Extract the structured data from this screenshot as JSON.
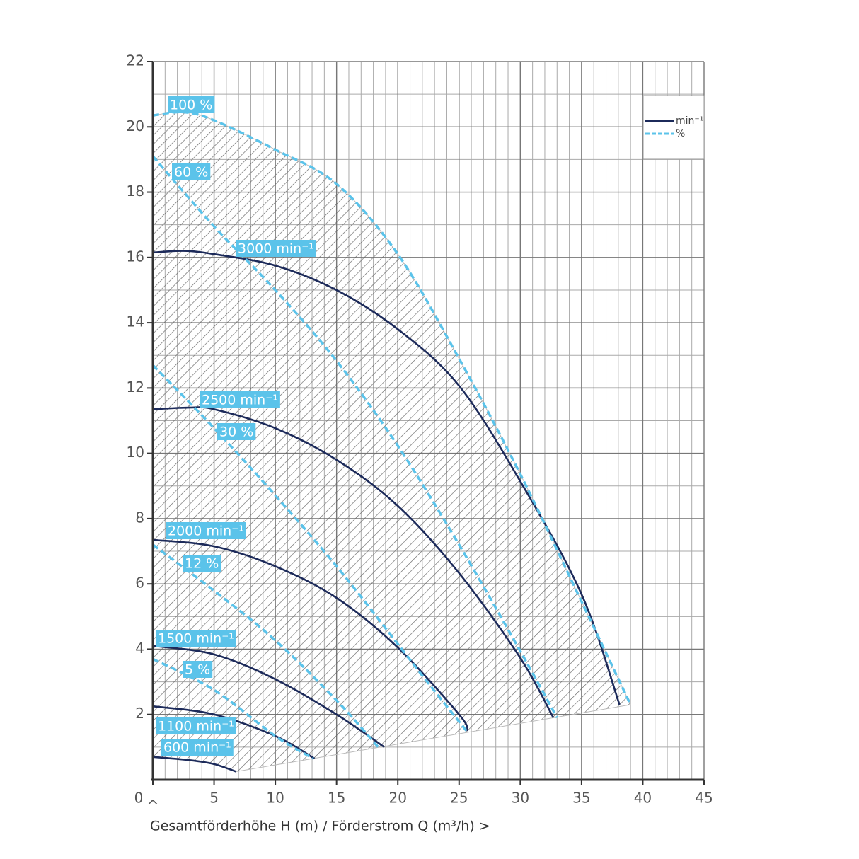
{
  "chart_data": {
    "type": "line",
    "xlabel": "Gesamtförderhöhe H (m) / Förderstrom Q (m³/h) >",
    "origin_marker": "^",
    "xlim": [
      0,
      45
    ],
    "xticks": [
      0,
      5,
      10,
      15,
      20,
      25,
      30,
      35,
      40,
      45
    ],
    "ylim": [
      0,
      22
    ],
    "yticks": [
      2,
      4,
      6,
      8,
      10,
      12,
      14,
      16,
      18,
      20,
      22
    ],
    "grid": true,
    "legend": {
      "position": "upper right",
      "entries": [
        {
          "label": "min⁻¹",
          "color": "#1c2a5a",
          "dashed": false
        },
        {
          "label": "%",
          "color": "#5bc3ea",
          "dashed": true
        }
      ]
    },
    "series": [
      {
        "name": "3000 min⁻¹",
        "color": "#1c2a5a",
        "dashed": false,
        "x": [
          0,
          2.5,
          5,
          10,
          15,
          20,
          25,
          30,
          35,
          38.1
        ],
        "values": [
          16.15,
          16.2,
          16.1,
          15.75,
          15.0,
          13.8,
          12.07,
          9.14,
          5.68,
          2.3
        ]
      },
      {
        "name": "2500 min⁻¹",
        "color": "#1c2a5a",
        "dashed": false,
        "x": [
          0,
          3,
          5,
          10,
          15,
          20,
          25,
          30,
          32.7
        ],
        "values": [
          11.35,
          11.4,
          11.35,
          10.77,
          9.8,
          8.39,
          6.33,
          3.73,
          1.9
        ]
      },
      {
        "name": "2000 min⁻¹",
        "color": "#1c2a5a",
        "dashed": false,
        "x": [
          0,
          5,
          10,
          15,
          20,
          25,
          25.7
        ],
        "values": [
          7.35,
          7.15,
          6.54,
          5.57,
          4.05,
          2.0,
          1.5
        ]
      },
      {
        "name": "1500 min⁻¹",
        "color": "#1c2a5a",
        "dashed": false,
        "x": [
          0,
          5,
          10,
          15,
          18.9
        ],
        "values": [
          4.1,
          3.84,
          3.08,
          2.0,
          1.0
        ]
      },
      {
        "name": "1100 min⁻¹",
        "color": "#1c2a5a",
        "dashed": false,
        "x": [
          0,
          5,
          10,
          13.2
        ],
        "values": [
          2.25,
          2.0,
          1.34,
          0.65
        ]
      },
      {
        "name": "600 min⁻¹",
        "color": "#1c2a5a",
        "dashed": false,
        "x": [
          0,
          3,
          5,
          6.8
        ],
        "values": [
          0.7,
          0.6,
          0.48,
          0.25
        ]
      },
      {
        "name": "100 %",
        "color": "#5bc3ea",
        "dashed": true,
        "x": [
          0,
          2.5,
          5,
          10,
          15,
          20,
          25,
          30,
          35,
          39
        ],
        "values": [
          20.35,
          20.45,
          20.2,
          19.3,
          18.25,
          16.1,
          12.9,
          9.36,
          5.46,
          2.3
        ]
      },
      {
        "name": "60 %",
        "color": "#5bc3ea",
        "dashed": true,
        "x": [
          0,
          5,
          10,
          15,
          20,
          25,
          30,
          33
        ],
        "values": [
          19.1,
          16.95,
          15.0,
          12.83,
          10.23,
          7.2,
          3.94,
          1.9
        ]
      },
      {
        "name": "30 %",
        "color": "#5bc3ea",
        "dashed": true,
        "x": [
          0,
          5,
          10,
          15,
          20,
          22,
          25.6
        ],
        "values": [
          12.7,
          10.77,
          8.71,
          6.54,
          4.16,
          3.19,
          1.5
        ]
      },
      {
        "name": "12 %",
        "color": "#5bc3ea",
        "dashed": true,
        "x": [
          0,
          5,
          10,
          15,
          18.4
        ],
        "values": [
          7.2,
          5.79,
          4.27,
          2.43,
          1.0
        ]
      },
      {
        "name": "5 %",
        "color": "#5bc3ea",
        "dashed": true,
        "x": [
          0,
          5,
          10,
          13.1
        ],
        "values": [
          3.7,
          2.75,
          1.34,
          0.65
        ]
      }
    ]
  }
}
